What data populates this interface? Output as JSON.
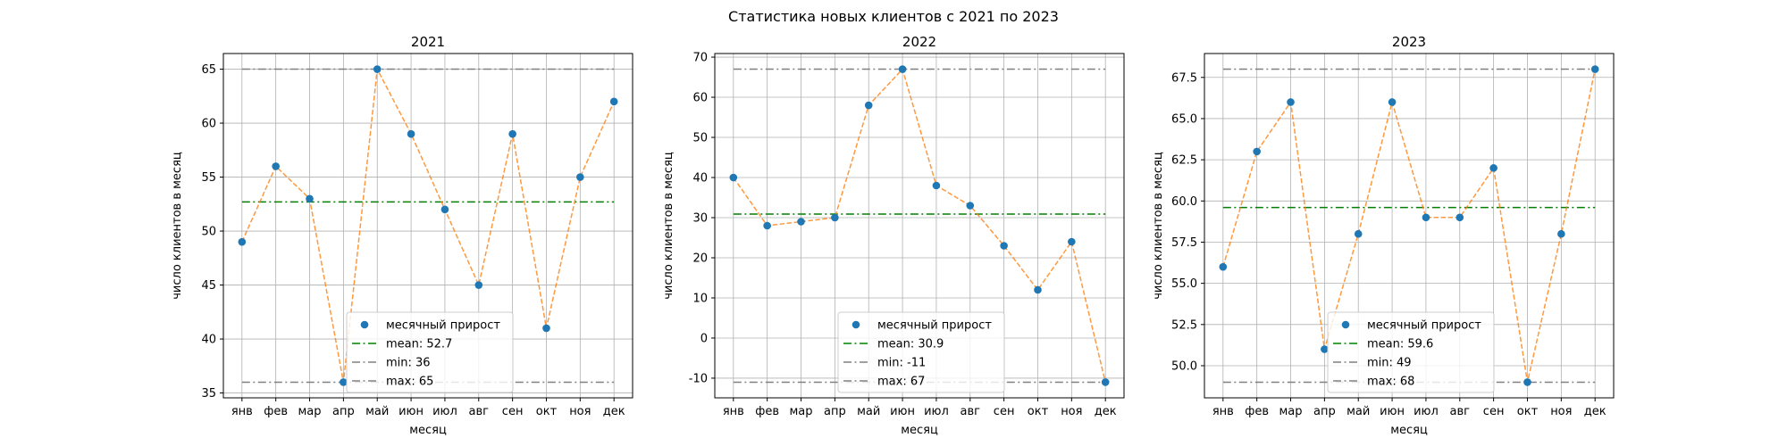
{
  "figure": {
    "title": "Статистика новых клиентов с  2021 по 2023"
  },
  "chart_data": [
    {
      "type": "line",
      "title": "2021",
      "xlabel": "месяц",
      "ylabel": "число клиентов в месяц",
      "categories": [
        "янв",
        "фев",
        "мар",
        "апр",
        "май",
        "июн",
        "июл",
        "авг",
        "сен",
        "окт",
        "ноя",
        "дек"
      ],
      "series": [
        {
          "name": "месячный прирост",
          "values": [
            49,
            56,
            53,
            36,
            65,
            59,
            52,
            45,
            59,
            41,
            55,
            62
          ]
        }
      ],
      "reference_lines": [
        {
          "label": "mean: 52.7",
          "value": 52.7,
          "color": "#008000",
          "dash": "dashdot"
        },
        {
          "label": "min: 36",
          "value": 36,
          "color": "#808080",
          "dash": "dashdot"
        },
        {
          "label": "max: 65",
          "value": 65,
          "color": "#808080",
          "dash": "dashdot"
        }
      ],
      "ylim": [
        34.55,
        66.45
      ],
      "yticks": [
        35,
        40,
        45,
        50,
        55,
        60,
        65
      ],
      "grid": true,
      "legend_position": "bottom-center"
    },
    {
      "type": "line",
      "title": "2022",
      "xlabel": "месяц",
      "ylabel": "число клиентов в месяц",
      "categories": [
        "янв",
        "фев",
        "мар",
        "апр",
        "май",
        "июн",
        "июл",
        "авг",
        "сен",
        "окт",
        "ноя",
        "дек"
      ],
      "series": [
        {
          "name": "месячный прирост",
          "values": [
            40,
            28,
            29,
            30,
            58,
            67,
            38,
            33,
            23,
            12,
            24,
            -11
          ]
        }
      ],
      "reference_lines": [
        {
          "label": "mean: 30.9",
          "value": 30.9,
          "color": "#008000",
          "dash": "dashdot"
        },
        {
          "label": "min: -11",
          "value": -11,
          "color": "#808080",
          "dash": "dashdot"
        },
        {
          "label": "max: 67",
          "value": 67,
          "color": "#808080",
          "dash": "dashdot"
        }
      ],
      "ylim": [
        -14.9,
        70.9
      ],
      "yticks": [
        -10,
        0,
        10,
        20,
        30,
        40,
        50,
        60,
        70
      ],
      "grid": true,
      "legend_position": "bottom-center"
    },
    {
      "type": "line",
      "title": "2023",
      "xlabel": "месяц",
      "ylabel": "число клиентов в месяц",
      "categories": [
        "янв",
        "фев",
        "мар",
        "апр",
        "май",
        "июн",
        "июл",
        "авг",
        "сен",
        "окт",
        "ноя",
        "дек"
      ],
      "series": [
        {
          "name": "месячный прирост",
          "values": [
            56,
            63,
            66,
            51,
            58,
            66,
            59,
            59,
            62,
            49,
            58,
            68
          ]
        }
      ],
      "reference_lines": [
        {
          "label": "mean: 59.6",
          "value": 59.6,
          "color": "#008000",
          "dash": "dashdot"
        },
        {
          "label": "min: 49",
          "value": 49,
          "color": "#808080",
          "dash": "dashdot"
        },
        {
          "label": "max: 68",
          "value": 68,
          "color": "#808080",
          "dash": "dashdot"
        }
      ],
      "ylim": [
        48.05,
        68.95
      ],
      "yticks": [
        50.0,
        52.5,
        55.0,
        57.5,
        60.0,
        62.5,
        65.0,
        67.5
      ],
      "ytick_labels": [
        "50.0",
        "52.5",
        "55.0",
        "57.5",
        "60.0",
        "62.5",
        "65.0",
        "67.5"
      ],
      "grid": true,
      "legend_position": "bottom-center"
    }
  ],
  "colors": {
    "marker": "#1f77b4",
    "line": "#ff7f0e",
    "mean": "#008000",
    "minmax": "#808080",
    "grid": "#b0b0b0"
  }
}
